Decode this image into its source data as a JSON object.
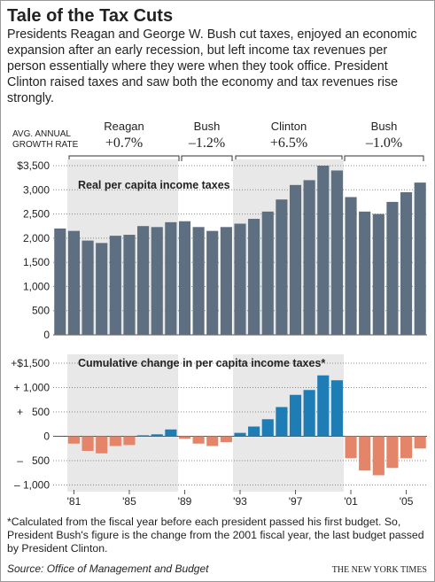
{
  "title": "Tale of the Tax Cuts",
  "subtitle": "Presidents Reagan and George W. Bush cut taxes, enjoyed an economic expansion after an early recession, but left income tax revenues per person essentially where they were when they took office. President Clinton raised taxes and saw both the economy and tax revenues rise strongly.",
  "growth_label": [
    "AVG. ANNUAL",
    "GROWTH RATE"
  ],
  "presidents": [
    {
      "name": "Reagan",
      "rate": "+0.7%"
    },
    {
      "name": "Bush",
      "rate": "–1.2%"
    },
    {
      "name": "Clinton",
      "rate": "+6.5%"
    },
    {
      "name": "Bush",
      "rate": "–1.0%"
    }
  ],
  "chart_data": [
    {
      "type": "bar",
      "title": "Real per capita income taxes",
      "x": [
        1980,
        1981,
        1982,
        1983,
        1984,
        1985,
        1986,
        1987,
        1988,
        1989,
        1990,
        1991,
        1992,
        1993,
        1994,
        1995,
        1996,
        1997,
        1998,
        1999,
        2000,
        2001,
        2002,
        2003,
        2004,
        2005,
        2006
      ],
      "values": [
        2200,
        2150,
        1950,
        1900,
        2050,
        2070,
        2250,
        2230,
        2330,
        2350,
        2230,
        2150,
        2230,
        2300,
        2400,
        2550,
        2800,
        3100,
        3200,
        3500,
        3400,
        2850,
        2550,
        2500,
        2750,
        2950,
        3150
      ],
      "color": "#5d6f80",
      "xlim": [
        1979.5,
        2006.5
      ],
      "ylim": [
        0,
        3500
      ],
      "yticks": [
        0,
        500,
        {
          "value": 1000,
          "label": "1,000"
        },
        {
          "value": 1500,
          "label": "1,500"
        },
        {
          "value": 2000,
          "label": "2,000"
        },
        {
          "value": 2500,
          "label": "2,500"
        },
        {
          "value": 3000,
          "label": "3,000"
        },
        {
          "value": 3500,
          "label": "$3,500"
        }
      ],
      "grid": true
    },
    {
      "type": "bar",
      "title": "Cumulative change in per capita income taxes*",
      "x": [
        1980,
        1981,
        1982,
        1983,
        1984,
        1985,
        1986,
        1987,
        1988,
        1989,
        1990,
        1991,
        1992,
        1993,
        1994,
        1995,
        1996,
        1997,
        1998,
        1999,
        2000,
        2001,
        2002,
        2003,
        2004,
        2005,
        2006
      ],
      "values": [
        null,
        -150,
        -300,
        -350,
        -200,
        -180,
        20,
        40,
        140,
        -50,
        -150,
        -200,
        -120,
        70,
        200,
        350,
        600,
        850,
        950,
        1250,
        1150,
        -450,
        -700,
        -800,
        -650,
        -450,
        -250
      ],
      "positive_color": "#1f7db5",
      "negative_color": "#e48468",
      "xlim": [
        1979.5,
        2006.5
      ],
      "xticks": [
        {
          "value": 1981,
          "label": "'81"
        },
        {
          "value": 1985,
          "label": "'85"
        },
        {
          "value": 1989,
          "label": "'89"
        },
        {
          "value": 1993,
          "label": "'93"
        },
        {
          "value": 1997,
          "label": "'97"
        },
        {
          "value": 2001,
          "label": "'01"
        },
        {
          "value": 2005,
          "label": "'05"
        }
      ],
      "ylim": [
        -1100,
        1500
      ],
      "yticks": [
        {
          "value": -1000,
          "label": "– 1,000"
        },
        {
          "value": -500,
          "label": "–   500"
        },
        0,
        {
          "value": 500,
          "label": "+   500"
        },
        {
          "value": 1000,
          "label": "+ 1,000"
        },
        {
          "value": 1500,
          "label": "+$1,500"
        }
      ],
      "grid": true
    }
  ],
  "footnote": "*Calculated from the fiscal year before each president passed his first budget. So, President Bush's figure is the change from the 2001 fiscal year, the last budget passed by President Clinton.",
  "source": "Source: Office of Management and Budget",
  "credit": "THE NEW YORK TIMES"
}
